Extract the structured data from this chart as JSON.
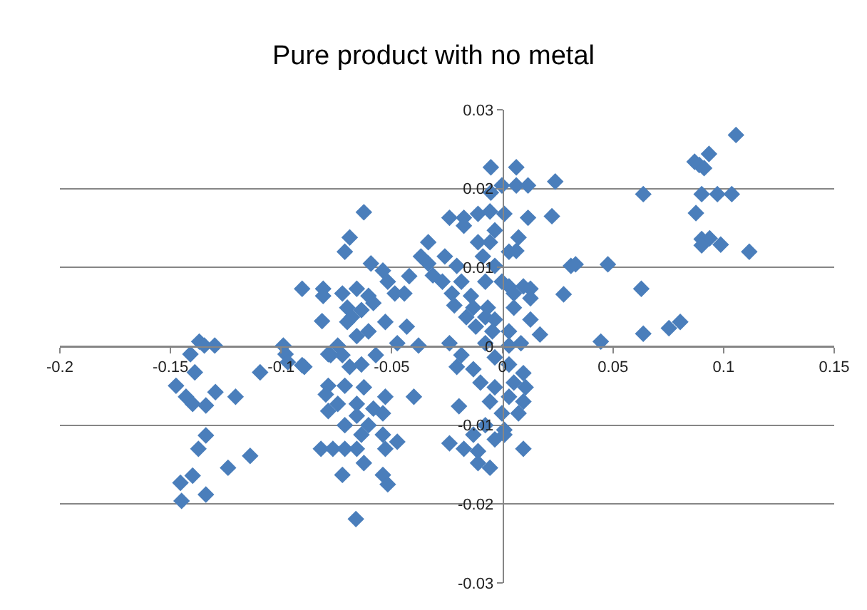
{
  "chart_data": {
    "type": "scatter",
    "title": "Pure product with no metal",
    "color": "#4a7ebb",
    "marker": "diamond",
    "grid": "y",
    "xlim": [
      -0.2,
      0.15
    ],
    "xticks": [
      -0.2,
      -0.15,
      -0.1,
      -0.05,
      0,
      0.05,
      0.1,
      0.15
    ],
    "ylim": [
      -0.03,
      0.03
    ],
    "yticks": [
      -0.03,
      -0.02,
      -0.01,
      0,
      0.01,
      0.02,
      0.03
    ],
    "x": [
      -0.0905,
      -0.081,
      -0.081,
      -0.0815,
      -0.099,
      -0.098,
      -0.097,
      -0.0905,
      -0.1095,
      -0.137,
      -0.1347,
      -0.13,
      -0.141,
      -0.139,
      -0.1475,
      -0.143,
      -0.14,
      -0.134,
      -0.1297,
      -0.1206,
      -0.134,
      -0.1374,
      -0.114,
      -0.124,
      -0.14,
      -0.1455,
      -0.134,
      -0.145,
      -0.082,
      -0.0766,
      -0.0787,
      -0.0798,
      -0.0787,
      -0.0787,
      -0.0744,
      -0.0895,
      -0.0776,
      -0.0723,
      -0.0626,
      -0.069,
      -0.0712,
      -0.0594,
      -0.054,
      -0.0421,
      -0.0518,
      -0.0486,
      -0.0443,
      -0.0723,
      -0.0658,
      -0.0605,
      -0.0583,
      -0.0701,
      -0.0637,
      -0.068,
      -0.0701,
      -0.0529,
      -0.0432,
      -0.0605,
      -0.0658,
      -0.0475,
      -0.0379,
      -0.069,
      -0.0637,
      -0.0572,
      -0.0712,
      -0.0626,
      -0.0529,
      -0.04,
      -0.0744,
      -0.0658,
      -0.0583,
      -0.0658,
      -0.054,
      -0.0712,
      -0.0605,
      -0.0637,
      -0.054,
      -0.0475,
      -0.0712,
      -0.0658,
      -0.0529,
      -0.0626,
      -0.0723,
      -0.054,
      -0.0518,
      -0.0662,
      -0.0052,
      0.0063,
      0.0239,
      -0.0002,
      0.0063,
      0.0116,
      -0.0052,
      -0.0239,
      -0.0174,
      -0.011,
      -0.0056,
      0.0009,
      0.0116,
      0.0224,
      -0.0174,
      -0.0034,
      0.0073,
      -0.0335,
      -0.011,
      -0.0056,
      0.003,
      0.0063,
      -0.0368,
      -0.026,
      -0.0088,
      -0.0335,
      -0.0206,
      -0.0034,
      -0.0314,
      -0.0271,
      -0.0185,
      -0.0077,
      -0.0002,
      0.003,
      0.0095,
      0.0127,
      0.0277,
      0.031,
      -0.0228,
      -0.0142,
      0.0052,
      0.0127,
      -0.0217,
      -0.0131,
      -0.0066,
      0.0052,
      -0.0163,
      -0.0077,
      -0.0034,
      0.0127,
      -0.012,
      -0.0045,
      0.003,
      0.017,
      -0.0239,
      -0.0077,
      0.003,
      0.0084,
      -0.0185,
      -0.0034,
      -0.0206,
      -0.0131,
      0.003,
      0.0095,
      -0.0099,
      -0.0034,
      0.0052,
      0.0105,
      0.003,
      -0.0056,
      0.0095,
      -0.0196,
      -0.0002,
      0.0073,
      -0.0077,
      0.0009,
      -0.0131,
      -0.0034,
      -0.0239,
      -0.0174,
      -0.011,
      0.0009,
      0.0095,
      -0.011,
      -0.0056,
      0.1056,
      0.0869,
      0.089,
      0.0934,
      0.0912,
      0.0637,
      0.0901,
      0.0972,
      0.1037,
      0.0875,
      0.0901,
      0.0937,
      0.0901,
      0.0987,
      0.1116,
      0.0331,
      0.0477,
      0.0628,
      0.0753,
      0.0804,
      0.0637,
      0.0445
    ],
    "values": [
      0.0073,
      0.0073,
      0.0064,
      0.0032,
      0.0001,
      -0.001,
      -0.002,
      -0.0024,
      -0.0033,
      0.0006,
      0.0001,
      0.0001,
      -0.001,
      -0.0033,
      -0.005,
      -0.0064,
      -0.0073,
      -0.0075,
      -0.0058,
      -0.0064,
      -0.0113,
      -0.013,
      -0.0139,
      -0.0154,
      -0.0164,
      -0.0173,
      -0.0188,
      -0.0196,
      -0.013,
      -0.013,
      -0.005,
      -0.0061,
      -0.0082,
      -0.001,
      0.0001,
      -0.0026,
      -0.0011,
      -0.0011,
      0.017,
      0.0138,
      0.012,
      0.0105,
      0.0096,
      0.0089,
      0.0082,
      0.0067,
      0.0067,
      0.0067,
      0.0073,
      0.0064,
      0.0055,
      0.0049,
      0.0046,
      0.0037,
      0.0031,
      0.0031,
      0.0025,
      0.0019,
      0.0013,
      0.0004,
      0.0001,
      -0.0026,
      -0.0023,
      -0.0011,
      -0.005,
      -0.0052,
      -0.0064,
      -0.0064,
      -0.0073,
      -0.0073,
      -0.0079,
      -0.0088,
      -0.0085,
      -0.01,
      -0.01,
      -0.0112,
      -0.0112,
      -0.0121,
      -0.013,
      -0.013,
      -0.013,
      -0.0148,
      -0.0163,
      -0.0163,
      -0.0175,
      -0.0219,
      0.0227,
      0.0227,
      0.0209,
      0.0204,
      0.0204,
      0.0204,
      0.0195,
      0.0163,
      0.0163,
      0.0168,
      0.0171,
      0.0168,
      0.0163,
      0.0165,
      0.0153,
      0.0147,
      0.0138,
      0.0132,
      0.0132,
      0.0132,
      0.012,
      0.0121,
      0.0114,
      0.0114,
      0.0114,
      0.0105,
      0.0102,
      0.0102,
      0.009,
      0.0082,
      0.0082,
      0.0082,
      0.0082,
      0.0076,
      0.0076,
      0.0073,
      0.0066,
      0.0102,
      0.0067,
      0.0064,
      0.0067,
      0.0061,
      0.0052,
      0.0049,
      0.0049,
      0.0049,
      0.0037,
      0.0037,
      0.0034,
      0.0034,
      0.0025,
      0.0019,
      0.0019,
      0.0015,
      0.0004,
      0.0004,
      0.0001,
      0.0004,
      -0.0011,
      -0.0014,
      -0.0026,
      -0.0029,
      -0.0023,
      -0.0034,
      -0.0046,
      -0.0052,
      -0.0046,
      -0.0052,
      -0.0064,
      -0.007,
      -0.007,
      -0.0076,
      -0.0085,
      -0.0085,
      -0.01,
      -0.0106,
      -0.0112,
      -0.0118,
      -0.0123,
      -0.013,
      -0.0133,
      -0.0112,
      -0.013,
      -0.0148,
      -0.0154,
      0.0268,
      0.0234,
      0.023,
      0.0244,
      0.0226,
      0.0193,
      0.0193,
      0.0193,
      0.0193,
      0.0169,
      0.0136,
      0.0137,
      0.0128,
      0.0129,
      0.012,
      0.0104,
      0.0104,
      0.0073,
      0.0023,
      0.0031,
      0.0016,
      0.0006
    ]
  }
}
